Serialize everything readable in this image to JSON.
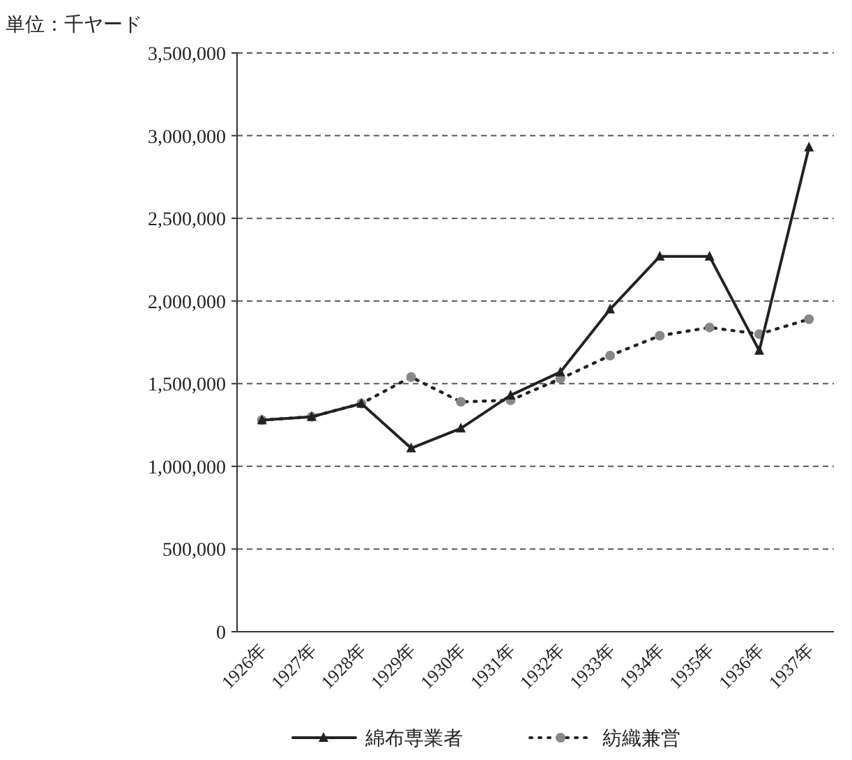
{
  "chart_data": {
    "type": "line",
    "ylabel": "単位：千ヤード",
    "categories": [
      "1926年",
      "1927年",
      "1928年",
      "1929年",
      "1930年",
      "1931年",
      "1932年",
      "1933年",
      "1934年",
      "1935年",
      "1936年",
      "1937年"
    ],
    "ylim": [
      0,
      3500000
    ],
    "yticks": [
      {
        "value": 0,
        "label": "0"
      },
      {
        "value": 500000,
        "label": "500,000"
      },
      {
        "value": 1000000,
        "label": "1,000,000"
      },
      {
        "value": 1500000,
        "label": "1,500,000"
      },
      {
        "value": 2000000,
        "label": "2,000,000"
      },
      {
        "value": 2500000,
        "label": "2,500,000"
      },
      {
        "value": 3000000,
        "label": "3,000,000"
      },
      {
        "value": 3500000,
        "label": "3,500,000"
      }
    ],
    "grid": "y",
    "legend": "bottom",
    "series": [
      {
        "name": "綿布専業者",
        "color": "#222222",
        "marker": "triangle",
        "line_style": "solid",
        "values": [
          1280000,
          1300000,
          1380000,
          1110000,
          1230000,
          1430000,
          1570000,
          1950000,
          2270000,
          2270000,
          1700000,
          2930000
        ]
      },
      {
        "name": "紡織兼営",
        "color": "#888888",
        "marker": "circle",
        "line_style": "dotted",
        "values": [
          1280000,
          1300000,
          1380000,
          1540000,
          1390000,
          1400000,
          1530000,
          1670000,
          1790000,
          1840000,
          1800000,
          1890000
        ]
      }
    ]
  }
}
